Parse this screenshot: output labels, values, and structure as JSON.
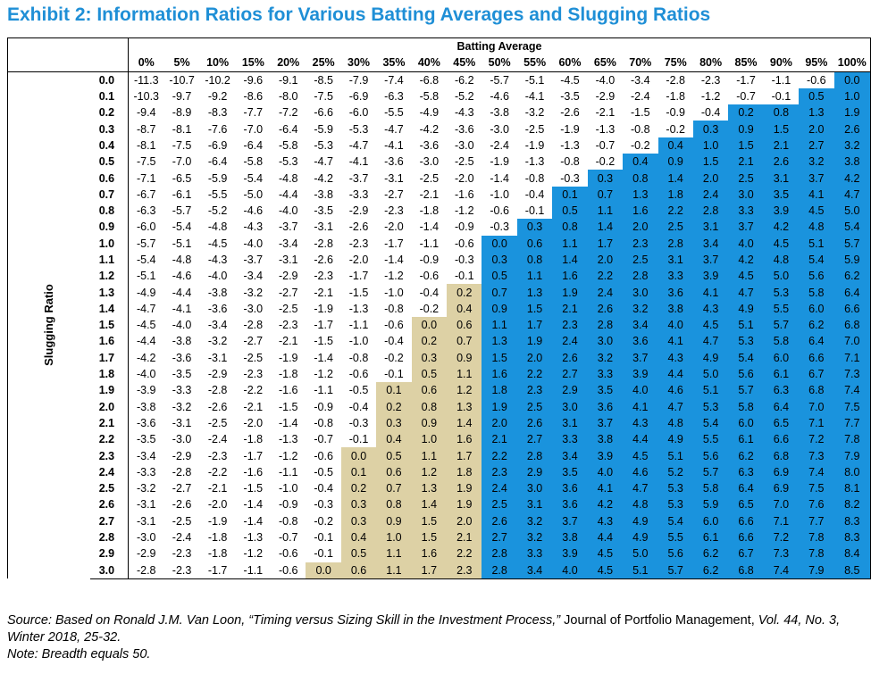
{
  "title": "Exhibit 2: Information Ratios for Various Batting Averages and Slugging Ratios",
  "colors": {
    "title": "#1f8fd6",
    "tan": "#ddd1a5",
    "blue": "#1a93dd"
  },
  "chart_data": {
    "type": "table",
    "column_header": "Batting Average",
    "row_header": "Slugging Ratio",
    "columns": [
      "0%",
      "5%",
      "10%",
      "15%",
      "20%",
      "25%",
      "30%",
      "35%",
      "40%",
      "45%",
      "50%",
      "55%",
      "60%",
      "65%",
      "70%",
      "75%",
      "80%",
      "85%",
      "90%",
      "95%",
      "100%"
    ],
    "rows": [
      "0.0",
      "0.1",
      "0.2",
      "0.3",
      "0.4",
      "0.5",
      "0.6",
      "0.7",
      "0.8",
      "0.9",
      "1.0",
      "1.1",
      "1.2",
      "1.3",
      "1.4",
      "1.5",
      "1.6",
      "1.7",
      "1.8",
      "1.9",
      "2.0",
      "2.1",
      "2.2",
      "2.3",
      "2.4",
      "2.5",
      "2.6",
      "2.7",
      "2.8",
      "2.9",
      "3.0"
    ],
    "values": [
      [
        "-11.3",
        "-10.7",
        "-10.2",
        "-9.6",
        "-9.1",
        "-8.5",
        "-7.9",
        "-7.4",
        "-6.8",
        "-6.2",
        "-5.7",
        "-5.1",
        "-4.5",
        "-4.0",
        "-3.4",
        "-2.8",
        "-2.3",
        "-1.7",
        "-1.1",
        "-0.6",
        "0.0"
      ],
      [
        "-10.3",
        "-9.7",
        "-9.2",
        "-8.6",
        "-8.0",
        "-7.5",
        "-6.9",
        "-6.3",
        "-5.8",
        "-5.2",
        "-4.6",
        "-4.1",
        "-3.5",
        "-2.9",
        "-2.4",
        "-1.8",
        "-1.2",
        "-0.7",
        "-0.1",
        "0.5",
        "1.0"
      ],
      [
        "-9.4",
        "-8.9",
        "-8.3",
        "-7.7",
        "-7.2",
        "-6.6",
        "-6.0",
        "-5.5",
        "-4.9",
        "-4.3",
        "-3.8",
        "-3.2",
        "-2.6",
        "-2.1",
        "-1.5",
        "-0.9",
        "-0.4",
        "0.2",
        "0.8",
        "1.3",
        "1.9"
      ],
      [
        "-8.7",
        "-8.1",
        "-7.6",
        "-7.0",
        "-6.4",
        "-5.9",
        "-5.3",
        "-4.7",
        "-4.2",
        "-3.6",
        "-3.0",
        "-2.5",
        "-1.9",
        "-1.3",
        "-0.8",
        "-0.2",
        "0.3",
        "0.9",
        "1.5",
        "2.0",
        "2.6"
      ],
      [
        "-8.1",
        "-7.5",
        "-6.9",
        "-6.4",
        "-5.8",
        "-5.3",
        "-4.7",
        "-4.1",
        "-3.6",
        "-3.0",
        "-2.4",
        "-1.9",
        "-1.3",
        "-0.7",
        "-0.2",
        "0.4",
        "1.0",
        "1.5",
        "2.1",
        "2.7",
        "3.2"
      ],
      [
        "-7.5",
        "-7.0",
        "-6.4",
        "-5.8",
        "-5.3",
        "-4.7",
        "-4.1",
        "-3.6",
        "-3.0",
        "-2.5",
        "-1.9",
        "-1.3",
        "-0.8",
        "-0.2",
        "0.4",
        "0.9",
        "1.5",
        "2.1",
        "2.6",
        "3.2",
        "3.8"
      ],
      [
        "-7.1",
        "-6.5",
        "-5.9",
        "-5.4",
        "-4.8",
        "-4.2",
        "-3.7",
        "-3.1",
        "-2.5",
        "-2.0",
        "-1.4",
        "-0.8",
        "-0.3",
        "0.3",
        "0.8",
        "1.4",
        "2.0",
        "2.5",
        "3.1",
        "3.7",
        "4.2"
      ],
      [
        "-6.7",
        "-6.1",
        "-5.5",
        "-5.0",
        "-4.4",
        "-3.8",
        "-3.3",
        "-2.7",
        "-2.1",
        "-1.6",
        "-1.0",
        "-0.4",
        "0.1",
        "0.7",
        "1.3",
        "1.8",
        "2.4",
        "3.0",
        "3.5",
        "4.1",
        "4.7"
      ],
      [
        "-6.3",
        "-5.7",
        "-5.2",
        "-4.6",
        "-4.0",
        "-3.5",
        "-2.9",
        "-2.3",
        "-1.8",
        "-1.2",
        "-0.6",
        "-0.1",
        "0.5",
        "1.1",
        "1.6",
        "2.2",
        "2.8",
        "3.3",
        "3.9",
        "4.5",
        "5.0"
      ],
      [
        "-6.0",
        "-5.4",
        "-4.8",
        "-4.3",
        "-3.7",
        "-3.1",
        "-2.6",
        "-2.0",
        "-1.4",
        "-0.9",
        "-0.3",
        "0.3",
        "0.8",
        "1.4",
        "2.0",
        "2.5",
        "3.1",
        "3.7",
        "4.2",
        "4.8",
        "5.4"
      ],
      [
        "-5.7",
        "-5.1",
        "-4.5",
        "-4.0",
        "-3.4",
        "-2.8",
        "-2.3",
        "-1.7",
        "-1.1",
        "-0.6",
        "0.0",
        "0.6",
        "1.1",
        "1.7",
        "2.3",
        "2.8",
        "3.4",
        "4.0",
        "4.5",
        "5.1",
        "5.7"
      ],
      [
        "-5.4",
        "-4.8",
        "-4.3",
        "-3.7",
        "-3.1",
        "-2.6",
        "-2.0",
        "-1.4",
        "-0.9",
        "-0.3",
        "0.3",
        "0.8",
        "1.4",
        "2.0",
        "2.5",
        "3.1",
        "3.7",
        "4.2",
        "4.8",
        "5.4",
        "5.9"
      ],
      [
        "-5.1",
        "-4.6",
        "-4.0",
        "-3.4",
        "-2.9",
        "-2.3",
        "-1.7",
        "-1.2",
        "-0.6",
        "-0.1",
        "0.5",
        "1.1",
        "1.6",
        "2.2",
        "2.8",
        "3.3",
        "3.9",
        "4.5",
        "5.0",
        "5.6",
        "6.2"
      ],
      [
        "-4.9",
        "-4.4",
        "-3.8",
        "-3.2",
        "-2.7",
        "-2.1",
        "-1.5",
        "-1.0",
        "-0.4",
        "0.2",
        "0.7",
        "1.3",
        "1.9",
        "2.4",
        "3.0",
        "3.6",
        "4.1",
        "4.7",
        "5.3",
        "5.8",
        "6.4"
      ],
      [
        "-4.7",
        "-4.1",
        "-3.6",
        "-3.0",
        "-2.5",
        "-1.9",
        "-1.3",
        "-0.8",
        "-0.2",
        "0.4",
        "0.9",
        "1.5",
        "2.1",
        "2.6",
        "3.2",
        "3.8",
        "4.3",
        "4.9",
        "5.5",
        "6.0",
        "6.6"
      ],
      [
        "-4.5",
        "-4.0",
        "-3.4",
        "-2.8",
        "-2.3",
        "-1.7",
        "-1.1",
        "-0.6",
        "0.0",
        "0.6",
        "1.1",
        "1.7",
        "2.3",
        "2.8",
        "3.4",
        "4.0",
        "4.5",
        "5.1",
        "5.7",
        "6.2",
        "6.8"
      ],
      [
        "-4.4",
        "-3.8",
        "-3.2",
        "-2.7",
        "-2.1",
        "-1.5",
        "-1.0",
        "-0.4",
        "0.2",
        "0.7",
        "1.3",
        "1.9",
        "2.4",
        "3.0",
        "3.6",
        "4.1",
        "4.7",
        "5.3",
        "5.8",
        "6.4",
        "7.0"
      ],
      [
        "-4.2",
        "-3.6",
        "-3.1",
        "-2.5",
        "-1.9",
        "-1.4",
        "-0.8",
        "-0.2",
        "0.3",
        "0.9",
        "1.5",
        "2.0",
        "2.6",
        "3.2",
        "3.7",
        "4.3",
        "4.9",
        "5.4",
        "6.0",
        "6.6",
        "7.1"
      ],
      [
        "-4.0",
        "-3.5",
        "-2.9",
        "-2.3",
        "-1.8",
        "-1.2",
        "-0.6",
        "-0.1",
        "0.5",
        "1.1",
        "1.6",
        "2.2",
        "2.7",
        "3.3",
        "3.9",
        "4.4",
        "5.0",
        "5.6",
        "6.1",
        "6.7",
        "7.3"
      ],
      [
        "-3.9",
        "-3.3",
        "-2.8",
        "-2.2",
        "-1.6",
        "-1.1",
        "-0.5",
        "0.1",
        "0.6",
        "1.2",
        "1.8",
        "2.3",
        "2.9",
        "3.5",
        "4.0",
        "4.6",
        "5.1",
        "5.7",
        "6.3",
        "6.8",
        "7.4"
      ],
      [
        "-3.8",
        "-3.2",
        "-2.6",
        "-2.1",
        "-1.5",
        "-0.9",
        "-0.4",
        "0.2",
        "0.8",
        "1.3",
        "1.9",
        "2.5",
        "3.0",
        "3.6",
        "4.1",
        "4.7",
        "5.3",
        "5.8",
        "6.4",
        "7.0",
        "7.5"
      ],
      [
        "-3.6",
        "-3.1",
        "-2.5",
        "-2.0",
        "-1.4",
        "-0.8",
        "-0.3",
        "0.3",
        "0.9",
        "1.4",
        "2.0",
        "2.6",
        "3.1",
        "3.7",
        "4.3",
        "4.8",
        "5.4",
        "6.0",
        "6.5",
        "7.1",
        "7.7"
      ],
      [
        "-3.5",
        "-3.0",
        "-2.4",
        "-1.8",
        "-1.3",
        "-0.7",
        "-0.1",
        "0.4",
        "1.0",
        "1.6",
        "2.1",
        "2.7",
        "3.3",
        "3.8",
        "4.4",
        "4.9",
        "5.5",
        "6.1",
        "6.6",
        "7.2",
        "7.8"
      ],
      [
        "-3.4",
        "-2.9",
        "-2.3",
        "-1.7",
        "-1.2",
        "-0.6",
        "0.0",
        "0.5",
        "1.1",
        "1.7",
        "2.2",
        "2.8",
        "3.4",
        "3.9",
        "4.5",
        "5.1",
        "5.6",
        "6.2",
        "6.8",
        "7.3",
        "7.9"
      ],
      [
        "-3.3",
        "-2.8",
        "-2.2",
        "-1.6",
        "-1.1",
        "-0.5",
        "0.1",
        "0.6",
        "1.2",
        "1.8",
        "2.3",
        "2.9",
        "3.5",
        "4.0",
        "4.6",
        "5.2",
        "5.7",
        "6.3",
        "6.9",
        "7.4",
        "8.0"
      ],
      [
        "-3.2",
        "-2.7",
        "-2.1",
        "-1.5",
        "-1.0",
        "-0.4",
        "0.2",
        "0.7",
        "1.3",
        "1.9",
        "2.4",
        "3.0",
        "3.6",
        "4.1",
        "4.7",
        "5.3",
        "5.8",
        "6.4",
        "6.9",
        "7.5",
        "8.1"
      ],
      [
        "-3.1",
        "-2.6",
        "-2.0",
        "-1.4",
        "-0.9",
        "-0.3",
        "0.3",
        "0.8",
        "1.4",
        "1.9",
        "2.5",
        "3.1",
        "3.6",
        "4.2",
        "4.8",
        "5.3",
        "5.9",
        "6.5",
        "7.0",
        "7.6",
        "8.2"
      ],
      [
        "-3.1",
        "-2.5",
        "-1.9",
        "-1.4",
        "-0.8",
        "-0.2",
        "0.3",
        "0.9",
        "1.5",
        "2.0",
        "2.6",
        "3.2",
        "3.7",
        "4.3",
        "4.9",
        "5.4",
        "6.0",
        "6.6",
        "7.1",
        "7.7",
        "8.3"
      ],
      [
        "-3.0",
        "-2.4",
        "-1.8",
        "-1.3",
        "-0.7",
        "-0.1",
        "0.4",
        "1.0",
        "1.5",
        "2.1",
        "2.7",
        "3.2",
        "3.8",
        "4.4",
        "4.9",
        "5.5",
        "6.1",
        "6.6",
        "7.2",
        "7.8",
        "8.3"
      ],
      [
        "-2.9",
        "-2.3",
        "-1.8",
        "-1.2",
        "-0.6",
        "-0.1",
        "0.5",
        "1.1",
        "1.6",
        "2.2",
        "2.8",
        "3.3",
        "3.9",
        "4.5",
        "5.0",
        "5.6",
        "6.2",
        "6.7",
        "7.3",
        "7.8",
        "8.4"
      ],
      [
        "-2.8",
        "-2.3",
        "-1.7",
        "-1.1",
        "-0.6",
        "0.0",
        "0.6",
        "1.1",
        "1.7",
        "2.3",
        "2.8",
        "3.4",
        "4.0",
        "4.5",
        "5.1",
        "5.7",
        "6.2",
        "6.8",
        "7.4",
        "7.9",
        "8.5"
      ]
    ]
  },
  "source": {
    "prefix": "Source: Based on Ronald J.M. Van Loon, “Timing versus Sizing Skill in the Investment Process,” ",
    "journal": "Journal of Portfolio Management,",
    "suffix": " Vol. 44, No. 3, Winter 2018, 25-32.",
    "note": "Note: Breadth equals 50."
  }
}
